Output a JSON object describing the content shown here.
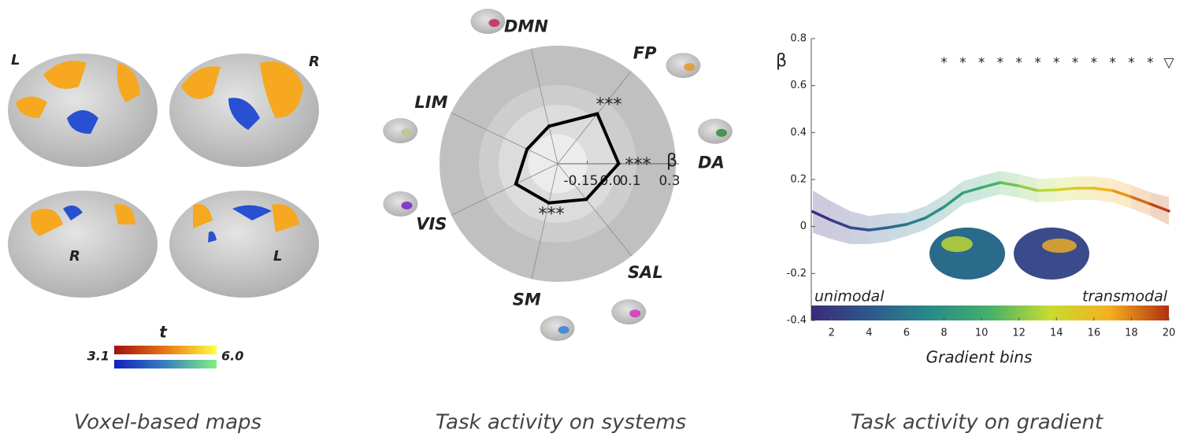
{
  "maps": {
    "hemisphere_labels": [
      "L",
      "R",
      "R",
      "L"
    ],
    "colorbar": {
      "title": "t",
      "min_label": "3.1",
      "max_label": "6.0"
    },
    "caption": "Voxel-based maps"
  },
  "chart_data": [
    {
      "type": "radar",
      "title": "Task activity on systems",
      "categories": [
        "DMN",
        "FP",
        "DA",
        "SAL",
        "SM",
        "VIS",
        "LIM"
      ],
      "colors": [
        "#c8235a",
        "#e8952a",
        "#2e8b3a",
        "#d633c0",
        "#3a7fd6",
        "#7a22c8",
        "#b8c88a"
      ],
      "values": [
        -0.104,
        0.024,
        0.01,
        -0.068,
        -0.096,
        -0.064,
        -0.128
      ],
      "color": "#000000",
      "rlim": [
        -0.3,
        0.3
      ],
      "rticks": [
        -0.15,
        {
          "value": 0,
          "label": "0.0"
        },
        0.1,
        0.3
      ],
      "rlabel": "β",
      "annotations": [
        "***",
        "***",
        "***"
      ]
    },
    {
      "type": "line",
      "title": "Task activity on gradient",
      "x": [
        1,
        2,
        3,
        4,
        5,
        6,
        7,
        8,
        9,
        10,
        11,
        12,
        13,
        14,
        15,
        16,
        17,
        18,
        19,
        20
      ],
      "values": [
        0.063,
        0.026,
        -0.005,
        -0.015,
        -0.005,
        0.009,
        0.036,
        0.083,
        0.143,
        0.166,
        0.187,
        0.173,
        0.153,
        0.156,
        0.163,
        0.163,
        0.153,
        0.126,
        0.096,
        0.066
      ],
      "errors": [
        0.09,
        0.08,
        0.07,
        0.06,
        0.06,
        0.05,
        0.05,
        0.05,
        0.05,
        0.05,
        0.05,
        0.05,
        0.05,
        0.05,
        0.05,
        0.05,
        0.05,
        0.05,
        0.05,
        0.06
      ],
      "colormap": [
        "#3b2a7a",
        "#2d5a8c",
        "#2a8a8a",
        "#45b06a",
        "#c8dc30",
        "#f5b020",
        "#b03010"
      ],
      "xlim": [
        1,
        20
      ],
      "xticks": [
        2,
        4,
        6,
        8,
        10,
        12,
        14,
        16,
        18,
        20
      ],
      "ylim": [
        -0.4,
        0.8
      ],
      "yticks": [
        -0.4,
        -0.2,
        0,
        0.2,
        0.4,
        0.6,
        0.8
      ],
      "xlabel": "Gradient bins",
      "ylabel": "β",
      "colorbar_labels": [
        "unimodal",
        "transmodal"
      ],
      "significance": {
        "x": [
          8,
          9,
          10,
          11,
          12,
          13,
          14,
          15,
          16,
          17,
          18,
          19,
          20
        ],
        "labels": [
          "*",
          "*",
          "*",
          "*",
          "*",
          "*",
          "*",
          "*",
          "*",
          "*",
          "*",
          "*",
          "▽"
        ]
      }
    }
  ]
}
